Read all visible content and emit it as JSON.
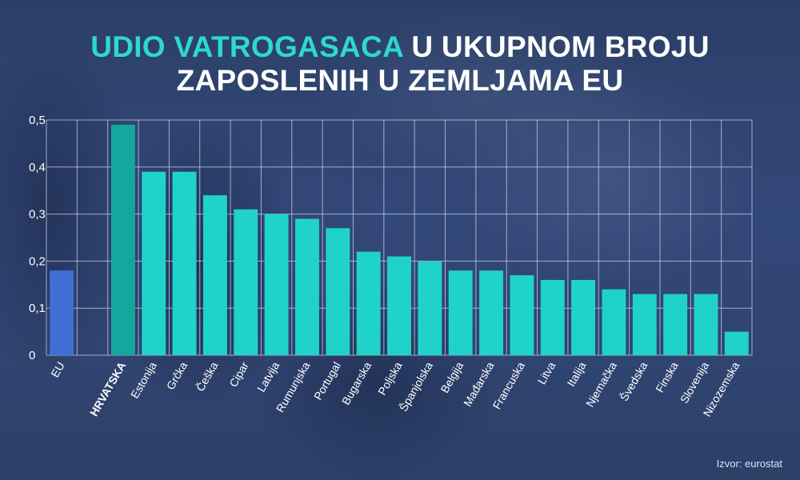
{
  "title": {
    "accent": "UDIO VATROGASACA",
    "line1_rest": " U UKUPNOM BROJU",
    "line2": "ZAPOSLENIH U ZEMLJAMA EU"
  },
  "source": "Izvor: eurostat",
  "colors": {
    "accent": "#2dd8cf",
    "bar": "#1fd3cb",
    "highlight": "#13a89e",
    "eu": "#3f6fd6",
    "grid": "#c9d3e6",
    "text": "#ffffff"
  },
  "chart_data": {
    "type": "bar",
    "title": "UDIO VATROGASACA U UKUPNOM BROJU ZAPOSLENIH U ZEMLJAMA EU",
    "categories": [
      "EU",
      "HRVATSKA",
      "Estonija",
      "Grčka",
      "Češka",
      "Cipar",
      "Latvija",
      "Rumunjska",
      "Portugal",
      "Bugarska",
      "Poljska",
      "Španjolska",
      "Belgija",
      "Mađarska",
      "Francuska",
      "Litva",
      "Italija",
      "Njemačka",
      "Švedska",
      "Finska",
      "Slovenija",
      "Nizozemska"
    ],
    "values": [
      0.18,
      0.49,
      0.39,
      0.39,
      0.34,
      0.31,
      0.3,
      0.29,
      0.27,
      0.22,
      0.21,
      0.2,
      0.18,
      0.18,
      0.17,
      0.16,
      0.16,
      0.14,
      0.13,
      0.13,
      0.13,
      0.05
    ],
    "ylim": [
      0,
      0.5
    ],
    "yticks": [
      "0",
      "0,1",
      "0,2",
      "0,3",
      "0,4",
      "0,5"
    ],
    "highlight": "HRVATSKA",
    "reference": "EU",
    "grid": true,
    "xlabel": "",
    "ylabel": ""
  }
}
